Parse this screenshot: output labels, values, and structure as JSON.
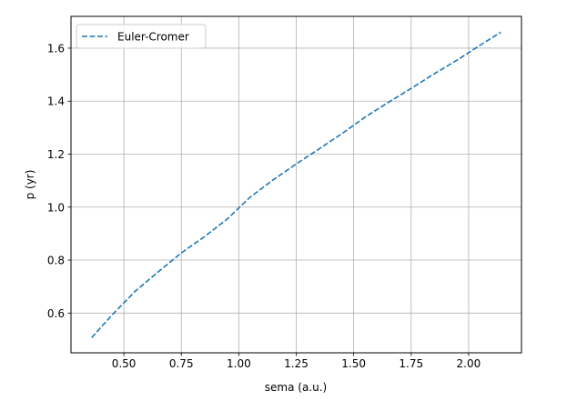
{
  "chart_data": {
    "type": "line",
    "xlabel": "sema (a.u.)",
    "ylabel": "p (yr)",
    "xlim": [
      0.27,
      2.23
    ],
    "ylim": [
      0.45,
      1.72
    ],
    "xticks": [
      0.5,
      0.75,
      1.0,
      1.25,
      1.5,
      1.75,
      2.0
    ],
    "xtick_labels": [
      "0.50",
      "0.75",
      "1.00",
      "1.25",
      "1.50",
      "1.75",
      "2.00"
    ],
    "yticks": [
      0.6,
      0.8,
      1.0,
      1.2,
      1.4,
      1.6
    ],
    "ytick_labels": [
      "0.6",
      "0.8",
      "1.0",
      "1.2",
      "1.4",
      "1.6"
    ],
    "grid": true,
    "legend": {
      "position": "upper-left",
      "entries": [
        "Euler-Cromer"
      ]
    },
    "series": [
      {
        "name": "Euler-Cromer",
        "color": "#1f77b4",
        "line_style": "dashed",
        "x": [
          0.36,
          0.45,
          0.55,
          0.65,
          0.75,
          0.85,
          0.95,
          1.05,
          1.15,
          1.25,
          1.35,
          1.45,
          1.55,
          1.65,
          1.75,
          1.85,
          1.95,
          2.05,
          2.14
        ],
        "y": [
          0.507,
          0.594,
          0.683,
          0.756,
          0.827,
          0.888,
          0.955,
          1.038,
          1.103,
          1.163,
          1.22,
          1.278,
          1.34,
          1.395,
          1.448,
          1.503,
          1.555,
          1.611,
          1.66
        ]
      }
    ]
  }
}
